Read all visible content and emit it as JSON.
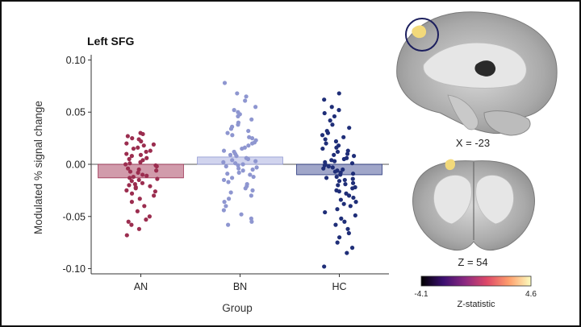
{
  "chart_data": {
    "type": "bar",
    "title": "Left SFG",
    "xlabel": "Group",
    "ylabel": "Modulated % signal change",
    "categories": [
      "AN",
      "BN",
      "HC"
    ],
    "values": [
      -0.013,
      0.007,
      -0.01
    ],
    "ylim": [
      -0.105,
      0.105
    ],
    "yticks": [
      "0.10",
      "0.05",
      "0.00",
      "-0.05",
      "-0.10"
    ],
    "ytick_values": [
      0.1,
      0.05,
      0.0,
      -0.05,
      -0.1
    ],
    "grid": false,
    "points": {
      "AN": [
        0.03,
        0.029,
        0.027,
        0.025,
        0.024,
        0.022,
        0.02,
        0.019,
        0.018,
        0.016,
        0.015,
        0.013,
        0.012,
        0.01,
        0.009,
        0.008,
        0.006,
        0.005,
        0.004,
        0.002,
        0.001,
        0.0,
        -0.001,
        -0.002,
        -0.004,
        -0.005,
        -0.006,
        -0.007,
        -0.008,
        -0.01,
        -0.011,
        -0.012,
        -0.013,
        -0.014,
        -0.015,
        -0.016,
        -0.018,
        -0.019,
        -0.02,
        -0.021,
        -0.022,
        -0.023,
        -0.025,
        -0.026,
        -0.028,
        -0.03,
        -0.033,
        -0.036,
        -0.04,
        -0.045,
        -0.05,
        -0.053,
        -0.055,
        -0.058,
        -0.062,
        -0.068
      ],
      "BN": [
        0.078,
        0.068,
        0.065,
        0.061,
        0.055,
        0.052,
        0.05,
        0.048,
        0.046,
        0.043,
        0.04,
        0.038,
        0.036,
        0.034,
        0.032,
        0.03,
        0.028,
        0.026,
        0.025,
        0.023,
        0.021,
        0.02,
        0.018,
        0.016,
        0.015,
        0.013,
        0.012,
        0.01,
        0.009,
        0.008,
        0.006,
        0.005,
        0.004,
        0.003,
        0.002,
        0.001,
        0.0,
        -0.001,
        -0.002,
        -0.003,
        -0.004,
        -0.005,
        -0.006,
        -0.008,
        -0.009,
        -0.01,
        -0.012,
        -0.013,
        -0.015,
        -0.017,
        -0.019,
        -0.021,
        -0.023,
        -0.025,
        -0.027,
        -0.03,
        -0.033,
        -0.036,
        -0.04,
        -0.044,
        -0.048,
        -0.052,
        -0.055,
        -0.058
      ],
      "HC": [
        0.068,
        0.062,
        0.055,
        0.052,
        0.049,
        0.046,
        0.042,
        0.038,
        0.035,
        0.032,
        0.03,
        0.028,
        0.026,
        0.024,
        0.022,
        0.02,
        0.018,
        0.016,
        0.015,
        0.013,
        0.012,
        0.01,
        0.009,
        0.008,
        0.006,
        0.005,
        0.004,
        0.003,
        0.002,
        0.001,
        0.0,
        -0.001,
        -0.002,
        -0.003,
        -0.004,
        -0.005,
        -0.006,
        -0.007,
        -0.008,
        -0.009,
        -0.01,
        -0.012,
        -0.013,
        -0.014,
        -0.015,
        -0.016,
        -0.018,
        -0.019,
        -0.02,
        -0.022,
        -0.023,
        -0.025,
        -0.026,
        -0.028,
        -0.03,
        -0.032,
        -0.034,
        -0.036,
        -0.038,
        -0.04,
        -0.043,
        -0.046,
        -0.049,
        -0.052,
        -0.055,
        -0.058,
        -0.062,
        -0.066,
        -0.07,
        -0.075,
        -0.08,
        -0.085,
        -0.098
      ]
    },
    "colors": {
      "AN": {
        "point": "#9b2d4f",
        "bar": "#c98a9c"
      },
      "BN": {
        "point": "#8e96d0",
        "bar": "#c9cdeb"
      },
      "HC": {
        "point": "#1f2e78",
        "bar": "#8f97c0"
      }
    }
  },
  "brain": {
    "sagittal_label": "X = -23",
    "coronal_label": "Z = 54",
    "colorbar": {
      "min_label": "-4.1",
      "max_label": "4.6",
      "label": "Z-statistic",
      "stops": [
        "#000000",
        "#3b0f70",
        "#8c2981",
        "#de4968",
        "#fe9f6d",
        "#fcfdbf"
      ]
    },
    "highlight_color": "#1c1f5e"
  }
}
